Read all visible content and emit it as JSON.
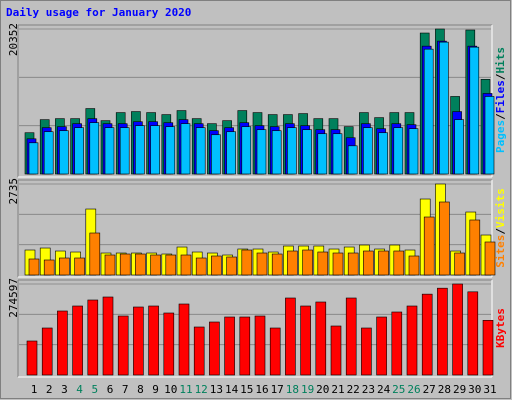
{
  "title": "Daily usage for January 2020",
  "legend_separator": "/",
  "chart_data": [
    {
      "type": "bar",
      "ylim": [
        0,
        20352
      ],
      "yticks": [
        20352
      ],
      "series": [
        {
          "name": "Hits",
          "color": "#00805c",
          "values": [
            5795,
            7631,
            7773,
            7773,
            9186,
            7490,
            8621,
            8763,
            8621,
            8339,
            8904,
            7773,
            7067,
            7490,
            8904,
            8621,
            8339,
            8339,
            8480,
            7773,
            7773,
            6643,
            8621,
            7915,
            8621,
            8621,
            19787,
            20352,
            10883,
            20210,
            13285
          ]
        },
        {
          "name": "Files",
          "color": "#0000ff",
          "values": [
            4940,
            6500,
            6640,
            7060,
            7770,
            7060,
            7060,
            7340,
            7340,
            7200,
            7630,
            7060,
            6080,
            6500,
            7200,
            6780,
            6640,
            7060,
            6780,
            6220,
            6220,
            5090,
            7060,
            6360,
            7060,
            6920,
            17945,
            18652,
            8761,
            17945,
            11304
          ]
        },
        {
          "name": "Pages",
          "color": "#00c0ff",
          "values": [
            4380,
            5935,
            6076,
            6500,
            7206,
            6500,
            6500,
            6782,
            6782,
            6641,
            7065,
            6500,
            5511,
            5935,
            6641,
            6217,
            6076,
            6500,
            6217,
            5652,
            5652,
            3956,
            6500,
            5793,
            6500,
            6359,
            17521,
            18510,
            7630,
            17804,
            10880
          ]
        }
      ]
    },
    {
      "type": "bar",
      "ylim": [
        0,
        2735
      ],
      "yticks": [
        2735
      ],
      "series": [
        {
          "name": "Visits",
          "color": "#ffff00",
          "values": [
            751,
            811,
            721,
            691,
            1983,
            661,
            661,
            661,
            661,
            631,
            841,
            691,
            661,
            601,
            781,
            781,
            691,
            871,
            871,
            871,
            781,
            841,
            901,
            781,
            901,
            751,
            2284,
            2735,
            721,
            1893,
            1202
          ]
        },
        {
          "name": "Sites",
          "color": "#ff8000",
          "values": [
            481,
            451,
            511,
            511,
            1262,
            601,
            631,
            631,
            601,
            601,
            601,
            511,
            571,
            541,
            751,
            661,
            631,
            721,
            751,
            691,
            661,
            661,
            721,
            721,
            721,
            571,
            1743,
            2194,
            661,
            1653,
            992
          ]
        }
      ]
    },
    {
      "type": "bar",
      "ylim": [
        0,
        274597
      ],
      "yticks": [
        274597
      ],
      "categories": [
        "1",
        "2",
        "3",
        "4",
        "5",
        "6",
        "7",
        "8",
        "9",
        "10",
        "11",
        "12",
        "13",
        "14",
        "15",
        "16",
        "17",
        "18",
        "19",
        "20",
        "21",
        "22",
        "23",
        "24",
        "25",
        "26",
        "27",
        "28",
        "29",
        "30",
        "31"
      ],
      "category_colors": [
        "#000000",
        "#000000",
        "#000000",
        "#00805c",
        "#00805c",
        "#000000",
        "#000000",
        "#000000",
        "#000000",
        "#000000",
        "#00805c",
        "#00805c",
        "#000000",
        "#000000",
        "#000000",
        "#000000",
        "#000000",
        "#00805c",
        "#00805c",
        "#000000",
        "#000000",
        "#000000",
        "#000000",
        "#000000",
        "#00805c",
        "#00805c",
        "#000000",
        "#000000",
        "#000000",
        "#000000",
        "#000000"
      ],
      "series": [
        {
          "name": "KBytes",
          "color": "#ff0000",
          "values": [
            102595,
            141823,
            193120,
            208207,
            226312,
            235365,
            178032,
            205190,
            208207,
            187085,
            214242,
            144840,
            159927,
            175015,
            175015,
            178032,
            141823,
            232347,
            208207,
            220277,
            147857,
            232347,
            141823,
            175015,
            190102,
            208207,
            244000,
            262000,
            274597,
            251000,
            165000
          ]
        }
      ]
    }
  ]
}
